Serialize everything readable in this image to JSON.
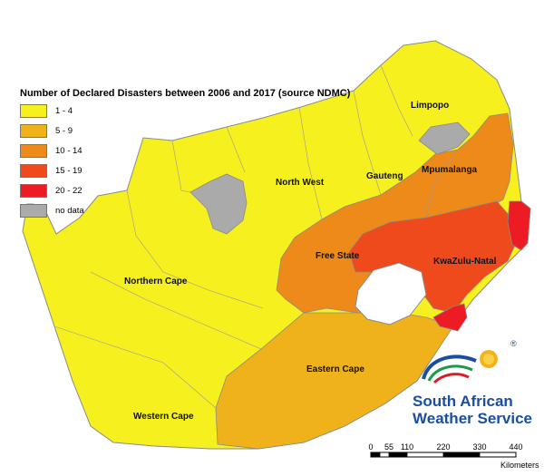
{
  "legend": {
    "title": "Number of Declared Disasters between 2006 and 2017 (source NDMC)",
    "items": [
      {
        "label": "1 - 4",
        "color": "#f5f01e"
      },
      {
        "label": "5 - 9",
        "color": "#f0b21b"
      },
      {
        "label": "10 - 14",
        "color": "#ee8a1a"
      },
      {
        "label": "15 - 19",
        "color": "#ee4a1c"
      },
      {
        "label": "20 - 22",
        "color": "#ed1c24"
      },
      {
        "label": "no data",
        "color": "#aaaaaa"
      }
    ]
  },
  "regions": {
    "limpopo": "Limpopo",
    "mpumalanga": "Mpumalanga",
    "gauteng": "Gauteng",
    "north_west": "North West",
    "free_state": "Free State",
    "kwazulu_natal": "KwaZulu-Natal",
    "northern_cape": "Northern Cape",
    "eastern_cape": "Eastern Cape",
    "western_cape": "Western Cape"
  },
  "logo": {
    "line1": "South African",
    "line2": "Weather Service",
    "registered": "®"
  },
  "scale": {
    "ticks": [
      "0",
      "55",
      "110",
      "220",
      "330",
      "440"
    ],
    "unit": "Kilometers"
  }
}
